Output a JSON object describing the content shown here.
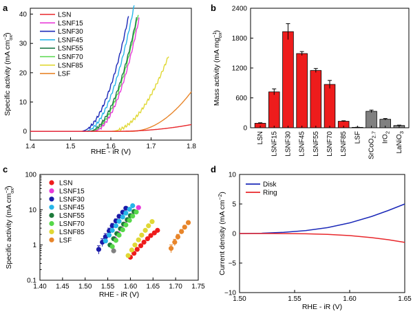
{
  "chart_data": [
    {
      "panel": "a",
      "type": "line",
      "xlabel": "RHE - iR (V)",
      "ylabel": "Specific activity (mA cm",
      "ylabel_sup": "−2",
      "ylabel_sub": "ox",
      "ylabel_close": ")",
      "xlim": [
        1.4,
        1.8
      ],
      "ylim": [
        -3,
        42
      ],
      "xticks": [
        "1.4",
        "1.5",
        "1.6",
        "1.7",
        "1.8"
      ],
      "xtick_vals": [
        1.4,
        1.5,
        1.6,
        1.7,
        1.8
      ],
      "yticks": [
        "0",
        "10",
        "20",
        "30",
        "40"
      ],
      "ytick_vals": [
        0,
        10,
        20,
        30,
        40
      ],
      "legend_position": "top-left",
      "series": [
        {
          "name": "LSN",
          "color": "#e8262a",
          "onset": 1.615,
          "k": 67,
          "n": 2.0,
          "end": 1.8
        },
        {
          "name": "LSNF15",
          "color": "#e83ad8",
          "onset": 1.555,
          "k": 2900,
          "n": 2.0,
          "end": 1.67
        },
        {
          "name": "LSNF30",
          "color": "#1a28b8",
          "onset": 1.525,
          "k": 2770,
          "n": 2.0,
          "end": 1.645
        },
        {
          "name": "LSNF45",
          "color": "#27b5e8",
          "onset": 1.535,
          "k": 2840,
          "n": 2.0,
          "end": 1.658
        },
        {
          "name": "LSNF55",
          "color": "#1d7a4a",
          "onset": 1.545,
          "k": 2720,
          "n": 2.0,
          "end": 1.665
        },
        {
          "name": "LSNF70",
          "color": "#56d84a",
          "onset": 1.55,
          "k": 2870,
          "n": 2.0,
          "end": 1.668
        },
        {
          "name": "LSNF85",
          "color": "#e0d835",
          "onset": 1.6,
          "k": 1250,
          "n": 2.0,
          "end": 1.745
        },
        {
          "name": "LSF",
          "color": "#e8852a",
          "onset": 1.65,
          "k": 600,
          "n": 2.0,
          "end": 1.8
        }
      ]
    },
    {
      "panel": "b",
      "type": "bar",
      "ylabel": "Mass activity (mA mg",
      "ylabel_sup": "−1",
      "ylabel_sub": "ox",
      "ylabel_close": ")",
      "ylim": [
        0,
        2400
      ],
      "yticks": [
        "0",
        "600",
        "1200",
        "1800",
        "2400"
      ],
      "ytick_vals": [
        0,
        600,
        1200,
        1800,
        2400
      ],
      "categories": [
        "LSN",
        "LSNF15",
        "LSNF30",
        "LSNF45",
        "LSNF55",
        "LSNF70",
        "LSNF85",
        "LSF",
        "SrCoO",
        "IrO",
        "LaNiO"
      ],
      "category_subscripts": [
        "",
        "",
        "",
        "",
        "",
        "",
        "",
        "",
        "2.7",
        "2",
        "3"
      ],
      "values": [
        90,
        720,
        1930,
        1490,
        1150,
        870,
        130,
        8,
        330,
        170,
        45
      ],
      "errors": [
        10,
        60,
        160,
        40,
        40,
        80,
        10,
        3,
        25,
        15,
        8
      ],
      "colors": [
        "#ee1c1c",
        "#ee1c1c",
        "#ee1c1c",
        "#ee1c1c",
        "#ee1c1c",
        "#ee1c1c",
        "#ee1c1c",
        "#ee1c1c",
        "#808080",
        "#808080",
        "#808080"
      ]
    },
    {
      "panel": "c",
      "type": "scatter",
      "xlabel": "RHE - iR (V)",
      "ylabel": "Specific activity (mA cm",
      "ylabel_sup": "−2",
      "ylabel_sub": "ox",
      "ylabel_close": ")",
      "yscale": "log",
      "xlim": [
        1.4,
        1.75
      ],
      "ylim": [
        0.1,
        100
      ],
      "xticks": [
        "1.40",
        "1.45",
        "1.50",
        "1.55",
        "1.60",
        "1.65",
        "1.70",
        "1.75"
      ],
      "xtick_vals": [
        1.4,
        1.45,
        1.5,
        1.55,
        1.6,
        1.65,
        1.7,
        1.75
      ],
      "yticks": [
        "0.1",
        "1",
        "10",
        "100"
      ],
      "ytick_vals": [
        0.1,
        1,
        10,
        100
      ],
      "legend_position": "top-left",
      "series": [
        {
          "name": "LSN",
          "color": "#ee1c1c",
          "x": [
            1.6,
            1.608,
            1.615,
            1.623,
            1.63,
            1.638,
            1.645,
            1.653,
            1.66
          ],
          "y": [
            0.45,
            0.58,
            0.75,
            0.95,
            1.2,
            1.5,
            1.85,
            2.2,
            2.6
          ]
        },
        {
          "name": "LSNF15",
          "color": "#e83ad8",
          "x": [
            1.565,
            1.573,
            1.58,
            1.588,
            1.595,
            1.603,
            1.61,
            1.618
          ],
          "y": [
            1.5,
            2.1,
            2.9,
            3.9,
            5.2,
            6.8,
            8.8,
            11.5
          ]
        },
        {
          "name": "LSNF30",
          "color": "#1a1aa8",
          "x": [
            1.53,
            1.538,
            1.545,
            1.553,
            1.56,
            1.568,
            1.575,
            1.583,
            1.59
          ],
          "y": [
            0.75,
            1.2,
            1.7,
            2.5,
            3.5,
            4.8,
            6.5,
            8.5,
            11.0
          ],
          "err": [
            0.2,
            0.3,
            0.4,
            0.5,
            0.6,
            0.7,
            0.8,
            0.9,
            1.0
          ]
        },
        {
          "name": "LSNF45",
          "color": "#27b5e8",
          "x": [
            1.545,
            1.553,
            1.56,
            1.568,
            1.575,
            1.583,
            1.59,
            1.598,
            1.605
          ],
          "y": [
            1.3,
            1.9,
            2.6,
            3.5,
            4.7,
            6.2,
            8.0,
            10.3,
            13.0
          ]
        },
        {
          "name": "LSNF55",
          "color": "#1d7a3a",
          "x": [
            1.555,
            1.563,
            1.57,
            1.578,
            1.585,
            1.593,
            1.6,
            1.608
          ],
          "y": [
            1.0,
            1.5,
            2.1,
            2.9,
            3.9,
            5.2,
            6.8,
            8.9
          ]
        },
        {
          "name": "LSNF70",
          "color": "#56d84a",
          "x": [
            1.56,
            1.568,
            1.575,
            1.583,
            1.59,
            1.598,
            1.605,
            1.613
          ],
          "y": [
            0.9,
            1.35,
            1.9,
            2.7,
            3.7,
            5.0,
            6.6,
            8.6
          ]
        },
        {
          "name": "LSNF85",
          "color": "#e0d835",
          "x": [
            1.595,
            1.603,
            1.61,
            1.618,
            1.625,
            1.633,
            1.64,
            1.648
          ],
          "y": [
            0.5,
            0.72,
            1.0,
            1.4,
            1.9,
            2.6,
            3.5,
            4.6
          ]
        },
        {
          "name": "LSF",
          "color": "#e8852a",
          "x": [
            1.69,
            1.698,
            1.705,
            1.713,
            1.72,
            1.728
          ],
          "y": [
            0.8,
            1.2,
            1.7,
            2.4,
            3.2,
            4.3
          ],
          "err": [
            0.2,
            0.25,
            0.3,
            0.35,
            0.4,
            0.5
          ]
        }
      ],
      "extra_points": [
        {
          "color": "#808080",
          "x": 1.563,
          "y": 0.68
        }
      ]
    },
    {
      "panel": "d",
      "type": "line",
      "xlabel": "RHE - iR (V)",
      "ylabel": "Current density (mA cm",
      "ylabel_sup": "−2",
      "ylabel_close": ")",
      "xlim": [
        1.5,
        1.65
      ],
      "ylim": [
        -10,
        10
      ],
      "xticks": [
        "1.50",
        "1.55",
        "1.60",
        "1.65"
      ],
      "xtick_vals": [
        1.5,
        1.55,
        1.6,
        1.65
      ],
      "yticks": [
        "−10",
        "−5",
        "0",
        "5",
        "10"
      ],
      "ytick_vals": [
        -10,
        -5,
        0,
        5,
        10
      ],
      "legend_position": "top-left",
      "series": [
        {
          "name": "Disk",
          "color": "#1a28b8",
          "x": [
            1.5,
            1.52,
            1.54,
            1.56,
            1.58,
            1.6,
            1.62,
            1.635,
            1.65
          ],
          "y": [
            0.0,
            0.05,
            0.2,
            0.5,
            1.0,
            1.8,
            2.9,
            3.9,
            5.0
          ]
        },
        {
          "name": "Ring",
          "color": "#e8262a",
          "x": [
            1.5,
            1.53,
            1.56,
            1.58,
            1.6,
            1.62,
            1.635,
            1.65
          ],
          "y": [
            0.0,
            0.0,
            -0.05,
            -0.15,
            -0.35,
            -0.7,
            -1.05,
            -1.5
          ]
        }
      ]
    }
  ],
  "panels": {
    "a": "a",
    "b": "b",
    "c": "c",
    "d": "d"
  }
}
